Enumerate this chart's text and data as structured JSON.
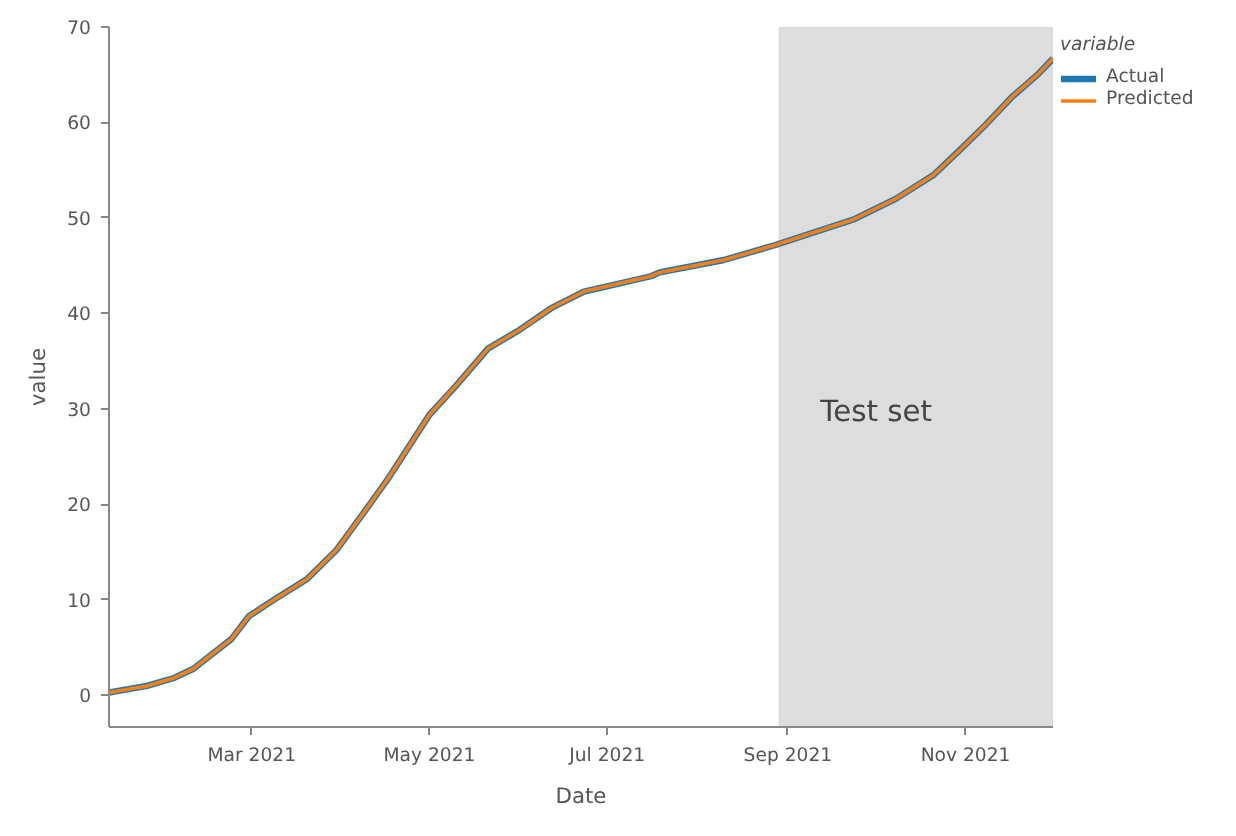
{
  "chart_data": {
    "type": "line",
    "xlabel": "Date",
    "ylabel": "value",
    "legend_title": "variable",
    "x": [
      "2021-01-11",
      "2021-01-24",
      "2021-02-02",
      "2021-02-09",
      "2021-02-14",
      "2021-02-22",
      "2021-02-28",
      "2021-03-08",
      "2021-03-20",
      "2021-03-30",
      "2021-04-10",
      "2021-04-17",
      "2021-04-24",
      "2021-05-01",
      "2021-05-10",
      "2021-05-21",
      "2021-06-01",
      "2021-06-12",
      "2021-06-23",
      "2021-07-16",
      "2021-07-19",
      "2021-08-10",
      "2021-08-28",
      "2021-09-24",
      "2021-10-08",
      "2021-10-21",
      "2021-10-30",
      "2021-11-08",
      "2021-11-17",
      "2021-11-26",
      "2021-12-01"
    ],
    "series": [
      {
        "name": "Actual",
        "color": "#1f77b4",
        "values": [
          0.3,
          1.0,
          1.8,
          2.8,
          4.0,
          5.9,
          8.3,
          9.9,
          12.2,
          15.2,
          19.8,
          22.8,
          26.1,
          29.4,
          32.4,
          36.3,
          38.3,
          40.6,
          42.3,
          43.9,
          44.3,
          45.6,
          47.2,
          49.9,
          52.0,
          54.5,
          57.1,
          59.8,
          62.7,
          65.1,
          66.7
        ]
      },
      {
        "name": "Predicted",
        "color": "#ff7f0e",
        "values": [
          0.3,
          1.0,
          1.8,
          2.8,
          4.0,
          5.9,
          8.3,
          9.9,
          12.2,
          15.2,
          19.8,
          22.8,
          26.1,
          29.4,
          32.4,
          36.3,
          38.3,
          40.6,
          42.3,
          43.9,
          44.3,
          45.6,
          47.2,
          49.9,
          52.0,
          54.5,
          57.1,
          59.8,
          62.7,
          65.1,
          66.7
        ]
      }
    ],
    "xlim": [
      "2021-01-11",
      "2021-12-01"
    ],
    "xticks": [
      {
        "value": "2021-03-01",
        "label": "Mar 2021"
      },
      {
        "value": "2021-05-01",
        "label": "May 2021"
      },
      {
        "value": "2021-07-01",
        "label": "Jul 2021"
      },
      {
        "value": "2021-09-01",
        "label": "Sep 2021"
      },
      {
        "value": "2021-11-01",
        "label": "Nov 2021"
      }
    ],
    "ylim": [
      -3.3,
      70
    ],
    "yticks": [
      0,
      10,
      20,
      30,
      40,
      50,
      60,
      70
    ],
    "bands": [
      {
        "axis": "x",
        "from": "2021-08-29",
        "to": "2021-12-01",
        "color": "#dddddd",
        "label": "Test set"
      }
    ],
    "grid": false,
    "legend": "top right",
    "marker": "none",
    "line_style": "solid"
  }
}
